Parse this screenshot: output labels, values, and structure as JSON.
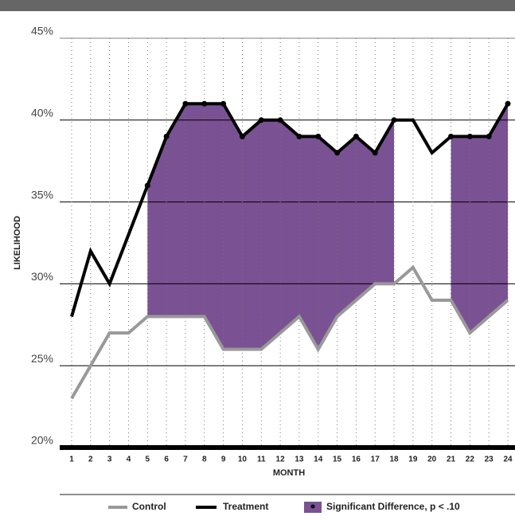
{
  "chart_data": {
    "type": "line",
    "x_label": "MONTH",
    "y_label": "LIKELIHOOD",
    "categories": [
      "1",
      "2",
      "3",
      "4",
      "5",
      "6",
      "7",
      "8",
      "9",
      "10",
      "11",
      "12",
      "13",
      "14",
      "15",
      "16",
      "17",
      "18",
      "19",
      "20",
      "21",
      "22",
      "23",
      "24"
    ],
    "series": [
      {
        "name": "Control",
        "color": "#999999",
        "values": [
          23,
          25,
          27,
          27,
          28,
          28,
          28,
          28,
          26,
          26,
          26,
          27,
          28,
          26,
          28,
          29,
          30,
          30,
          31,
          29,
          29,
          27,
          28,
          29
        ]
      },
      {
        "name": "Treatment",
        "color": "#000000",
        "values": [
          28,
          32,
          30,
          33,
          36,
          39,
          41,
          41,
          41,
          39,
          40,
          40,
          39,
          39,
          38,
          39,
          38,
          40,
          40,
          38,
          39,
          39,
          39,
          41
        ]
      }
    ],
    "significance": {
      "name": "Significant Difference, p < .10",
      "color": "#7a5193",
      "values": [
        false,
        false,
        false,
        false,
        true,
        true,
        true,
        true,
        true,
        true,
        true,
        true,
        true,
        true,
        true,
        true,
        true,
        true,
        false,
        false,
        true,
        true,
        true,
        true
      ]
    },
    "ylim": [
      20,
      45
    ],
    "yticks": [
      {
        "value": 20,
        "label": "20%"
      },
      {
        "value": 25,
        "label": "25%"
      },
      {
        "value": 30,
        "label": "30%"
      },
      {
        "value": 35,
        "label": "35%"
      },
      {
        "value": 40,
        "label": "40%"
      },
      {
        "value": 45,
        "label": "45%"
      }
    ],
    "grid": true
  }
}
